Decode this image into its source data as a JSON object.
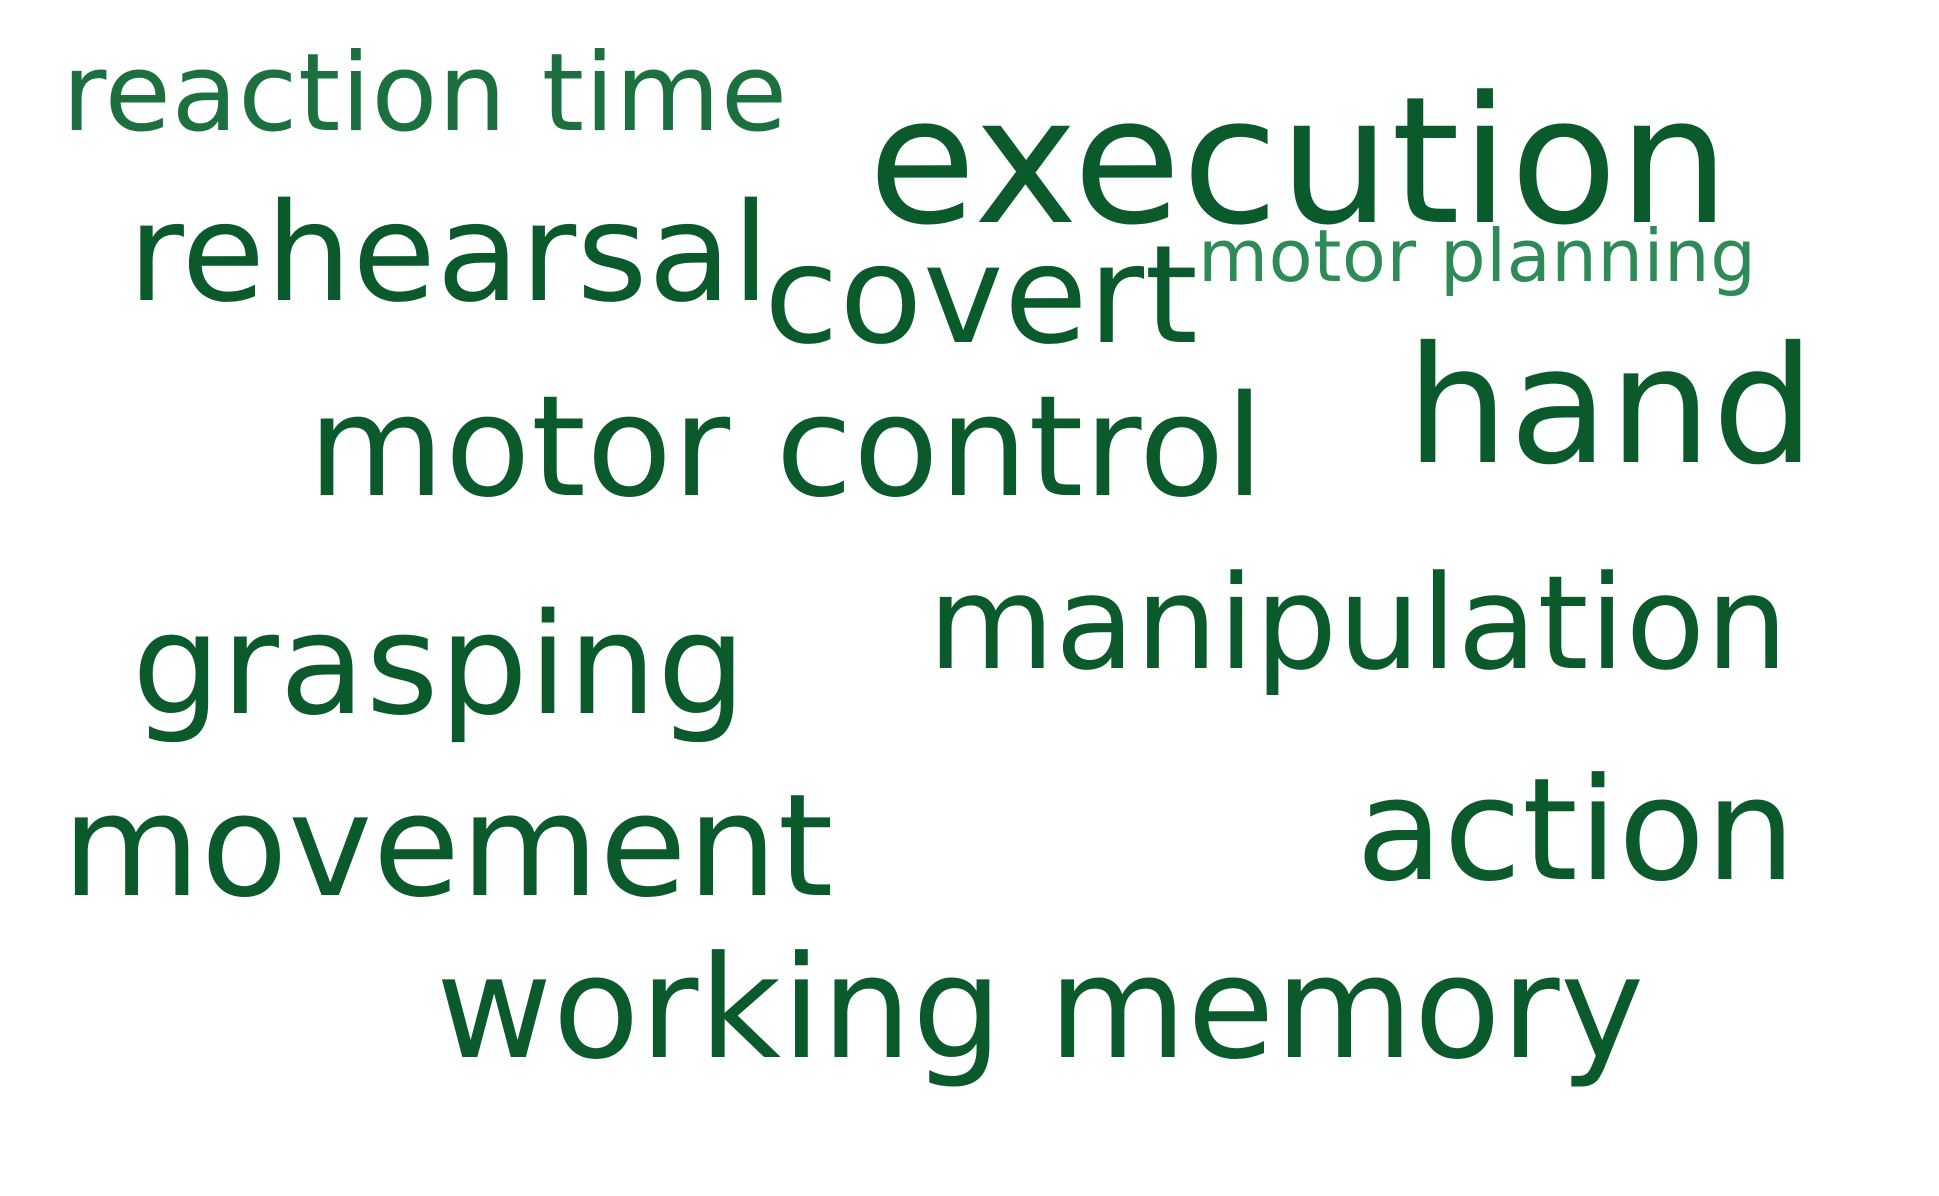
{
  "colors": {
    "dark_green": "#0b5a2b",
    "medium_green": "#1c7040",
    "light_green": "#2e8b57",
    "background": "#ffffff"
  },
  "words": [
    {
      "id": "reaction-time",
      "text": "reaction time",
      "color": "#1c7040"
    },
    {
      "id": "execution",
      "text": "execution",
      "color": "#0b5a2b"
    },
    {
      "id": "rehearsal",
      "text": "rehearsal",
      "color": "#0b5a2b"
    },
    {
      "id": "covert",
      "text": "covert",
      "color": "#0b5a2b"
    },
    {
      "id": "motor-planning",
      "text": "motor planning",
      "color": "#2e8b57"
    },
    {
      "id": "motor-control",
      "text": "motor control",
      "color": "#0b5a2b"
    },
    {
      "id": "hand",
      "text": "hand",
      "color": "#0b5a2b"
    },
    {
      "id": "manipulation",
      "text": "manipulation",
      "color": "#0b5a2b"
    },
    {
      "id": "grasping",
      "text": "grasping",
      "color": "#0b5a2b"
    },
    {
      "id": "movement",
      "text": "movement",
      "color": "#0b5a2b"
    },
    {
      "id": "action",
      "text": "action",
      "color": "#0b5a2b"
    },
    {
      "id": "working-memory",
      "text": "working memory",
      "color": "#0b5a2b"
    }
  ]
}
